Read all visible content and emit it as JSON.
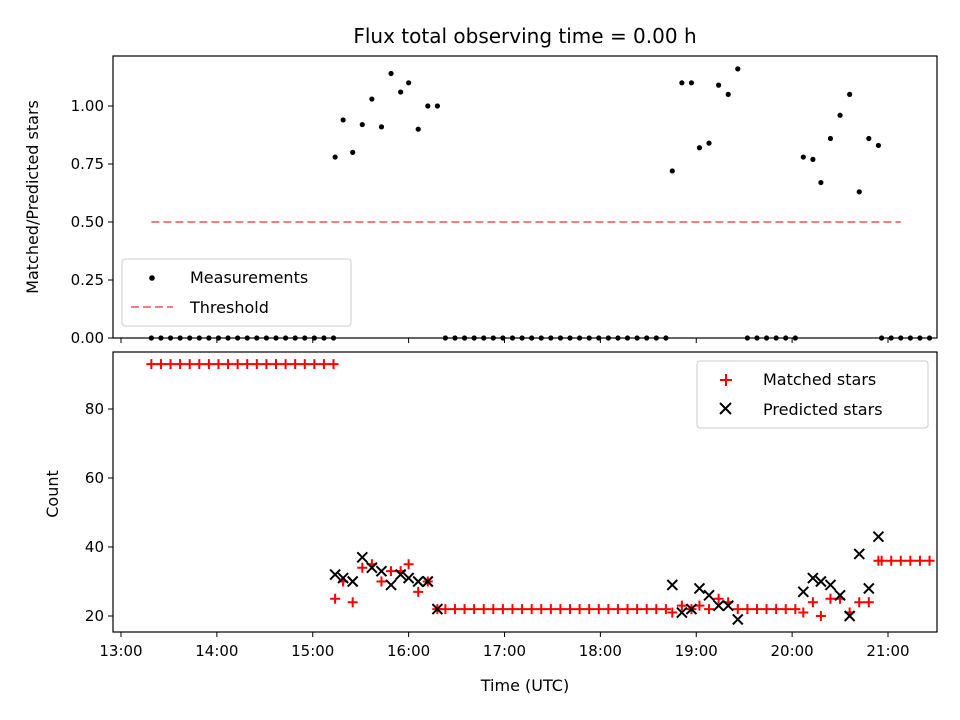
{
  "chart_data": [
    {
      "type": "scatter",
      "title": "Flux total observing time = 0.00 h",
      "xlabel": "",
      "ylabel": "Matched/Predicted stars",
      "xlim": [
        "13:00",
        "21:30"
      ],
      "ylim": [
        0,
        1.2
      ],
      "yticks": [
        "0.00",
        "0.25",
        "0.50",
        "0.75",
        "1.00"
      ],
      "grid": false,
      "legend_position": "lower-left",
      "threshold": {
        "name": "Threshold",
        "value": 0.5,
        "x": [
          "13:19",
          "21:08"
        ],
        "color": "#f08080"
      },
      "series": [
        {
          "name": "Measurements",
          "marker": "dot",
          "color": "#000000",
          "points": [
            [
              "13:19",
              0
            ],
            [
              "13:25",
              0
            ],
            [
              "13:31",
              0
            ],
            [
              "13:37",
              0
            ],
            [
              "13:43",
              0
            ],
            [
              "13:49",
              0
            ],
            [
              "13:55",
              0
            ],
            [
              "14:01",
              0
            ],
            [
              "14:07",
              0
            ],
            [
              "14:13",
              0
            ],
            [
              "14:19",
              0
            ],
            [
              "14:25",
              0
            ],
            [
              "14:31",
              0
            ],
            [
              "14:37",
              0
            ],
            [
              "14:43",
              0
            ],
            [
              "14:49",
              0
            ],
            [
              "14:55",
              0
            ],
            [
              "15:01",
              0
            ],
            [
              "15:07",
              0
            ],
            [
              "15:13",
              0
            ],
            [
              "15:14",
              0.78
            ],
            [
              "15:19",
              0.94
            ],
            [
              "15:25",
              0.8
            ],
            [
              "15:31",
              0.92
            ],
            [
              "15:37",
              1.03
            ],
            [
              "15:43",
              0.91
            ],
            [
              "15:49",
              1.14
            ],
            [
              "15:55",
              1.06
            ],
            [
              "16:00",
              1.1
            ],
            [
              "16:06",
              0.9
            ],
            [
              "16:12",
              1.0
            ],
            [
              "16:18",
              1.0
            ],
            [
              "16:23",
              0
            ],
            [
              "16:29",
              0
            ],
            [
              "16:35",
              0
            ],
            [
              "16:41",
              0
            ],
            [
              "16:47",
              0
            ],
            [
              "16:53",
              0
            ],
            [
              "16:59",
              0
            ],
            [
              "17:05",
              0
            ],
            [
              "17:11",
              0
            ],
            [
              "17:17",
              0
            ],
            [
              "17:23",
              0
            ],
            [
              "17:29",
              0
            ],
            [
              "17:35",
              0
            ],
            [
              "17:41",
              0
            ],
            [
              "17:47",
              0
            ],
            [
              "17:53",
              0
            ],
            [
              "17:59",
              0
            ],
            [
              "18:05",
              0
            ],
            [
              "18:11",
              0
            ],
            [
              "18:17",
              0
            ],
            [
              "18:23",
              0
            ],
            [
              "18:29",
              0
            ],
            [
              "18:35",
              0
            ],
            [
              "18:41",
              0
            ],
            [
              "18:45",
              0.72
            ],
            [
              "18:51",
              1.1
            ],
            [
              "18:57",
              1.1
            ],
            [
              "19:02",
              0.82
            ],
            [
              "19:08",
              0.84
            ],
            [
              "19:14",
              1.09
            ],
            [
              "19:20",
              1.05
            ],
            [
              "19:26",
              1.16
            ],
            [
              "19:32",
              0
            ],
            [
              "19:38",
              0
            ],
            [
              "19:44",
              0
            ],
            [
              "19:50",
              0
            ],
            [
              "19:56",
              0
            ],
            [
              "20:02",
              0
            ],
            [
              "20:07",
              0.78
            ],
            [
              "20:13",
              0.77
            ],
            [
              "20:18",
              0.67
            ],
            [
              "20:24",
              0.86
            ],
            [
              "20:30",
              0.96
            ],
            [
              "20:36",
              1.05
            ],
            [
              "20:42",
              0.63
            ],
            [
              "20:48",
              0.86
            ],
            [
              "20:54",
              0.83
            ],
            [
              "20:56",
              0
            ],
            [
              "21:02",
              0
            ],
            [
              "21:08",
              0
            ],
            [
              "21:14",
              0
            ],
            [
              "21:20",
              0
            ],
            [
              "21:26",
              0
            ]
          ]
        }
      ]
    },
    {
      "type": "scatter",
      "title": "",
      "xlabel": "Time (UTC)",
      "ylabel": "Count",
      "xlim": [
        "13:00",
        "21:30"
      ],
      "ylim": [
        15,
        95
      ],
      "xticks": [
        "13:00",
        "14:00",
        "15:00",
        "16:00",
        "17:00",
        "18:00",
        "19:00",
        "20:00",
        "21:00"
      ],
      "yticks": [
        "20",
        "40",
        "60",
        "80"
      ],
      "grid": false,
      "legend_position": "top-right",
      "series": [
        {
          "name": "Matched stars",
          "marker": "plus",
          "color": "#ff0000",
          "points": [
            [
              "13:19",
              93
            ],
            [
              "13:25",
              93
            ],
            [
              "13:31",
              93
            ],
            [
              "13:37",
              93
            ],
            [
              "13:43",
              93
            ],
            [
              "13:49",
              93
            ],
            [
              "13:55",
              93
            ],
            [
              "14:01",
              93
            ],
            [
              "14:07",
              93
            ],
            [
              "14:13",
              93
            ],
            [
              "14:19",
              93
            ],
            [
              "14:25",
              93
            ],
            [
              "14:31",
              93
            ],
            [
              "14:37",
              93
            ],
            [
              "14:43",
              93
            ],
            [
              "14:49",
              93
            ],
            [
              "14:55",
              93
            ],
            [
              "15:01",
              93
            ],
            [
              "15:07",
              93
            ],
            [
              "15:13",
              93
            ],
            [
              "15:14",
              25
            ],
            [
              "15:19",
              30
            ],
            [
              "15:25",
              24
            ],
            [
              "15:31",
              34
            ],
            [
              "15:37",
              35
            ],
            [
              "15:43",
              30
            ],
            [
              "15:49",
              33
            ],
            [
              "15:55",
              33
            ],
            [
              "16:00",
              35
            ],
            [
              "16:06",
              27
            ],
            [
              "16:12",
              30
            ],
            [
              "16:18",
              22
            ],
            [
              "16:23",
              22
            ],
            [
              "16:29",
              22
            ],
            [
              "16:35",
              22
            ],
            [
              "16:41",
              22
            ],
            [
              "16:47",
              22
            ],
            [
              "16:53",
              22
            ],
            [
              "16:59",
              22
            ],
            [
              "17:05",
              22
            ],
            [
              "17:11",
              22
            ],
            [
              "17:17",
              22
            ],
            [
              "17:23",
              22
            ],
            [
              "17:29",
              22
            ],
            [
              "17:35",
              22
            ],
            [
              "17:41",
              22
            ],
            [
              "17:47",
              22
            ],
            [
              "17:53",
              22
            ],
            [
              "17:59",
              22
            ],
            [
              "18:05",
              22
            ],
            [
              "18:11",
              22
            ],
            [
              "18:17",
              22
            ],
            [
              "18:23",
              22
            ],
            [
              "18:29",
              22
            ],
            [
              "18:35",
              22
            ],
            [
              "18:41",
              22
            ],
            [
              "18:45",
              21
            ],
            [
              "18:51",
              23
            ],
            [
              "18:57",
              22
            ],
            [
              "19:02",
              23
            ],
            [
              "19:08",
              22
            ],
            [
              "19:14",
              25
            ],
            [
              "19:20",
              24
            ],
            [
              "19:26",
              22
            ],
            [
              "19:32",
              22
            ],
            [
              "19:38",
              22
            ],
            [
              "19:44",
              22
            ],
            [
              "19:50",
              22
            ],
            [
              "19:56",
              22
            ],
            [
              "20:02",
              22
            ],
            [
              "20:07",
              21
            ],
            [
              "20:13",
              24
            ],
            [
              "20:18",
              20
            ],
            [
              "20:24",
              25
            ],
            [
              "20:30",
              25
            ],
            [
              "20:36",
              21
            ],
            [
              "20:42",
              24
            ],
            [
              "20:48",
              24
            ],
            [
              "20:54",
              36
            ],
            [
              "20:56",
              36
            ],
            [
              "21:02",
              36
            ],
            [
              "21:08",
              36
            ],
            [
              "21:14",
              36
            ],
            [
              "21:20",
              36
            ],
            [
              "21:26",
              36
            ]
          ]
        },
        {
          "name": "Predicted stars",
          "marker": "x",
          "color": "#000000",
          "points": [
            [
              "15:14",
              32
            ],
            [
              "15:19",
              31
            ],
            [
              "15:25",
              30
            ],
            [
              "15:31",
              37
            ],
            [
              "15:37",
              34
            ],
            [
              "15:43",
              33
            ],
            [
              "15:49",
              29
            ],
            [
              "15:55",
              32
            ],
            [
              "16:00",
              31
            ],
            [
              "16:06",
              30
            ],
            [
              "16:12",
              30
            ],
            [
              "16:18",
              22
            ],
            [
              "18:45",
              29
            ],
            [
              "18:51",
              21
            ],
            [
              "18:57",
              22
            ],
            [
              "19:02",
              28
            ],
            [
              "19:08",
              26
            ],
            [
              "19:14",
              23
            ],
            [
              "19:20",
              23
            ],
            [
              "19:26",
              19
            ],
            [
              "20:07",
              27
            ],
            [
              "20:13",
              31
            ],
            [
              "20:18",
              30
            ],
            [
              "20:24",
              29
            ],
            [
              "20:30",
              26
            ],
            [
              "20:36",
              20
            ],
            [
              "20:42",
              38
            ],
            [
              "20:48",
              28
            ],
            [
              "20:54",
              43
            ]
          ]
        }
      ]
    }
  ]
}
